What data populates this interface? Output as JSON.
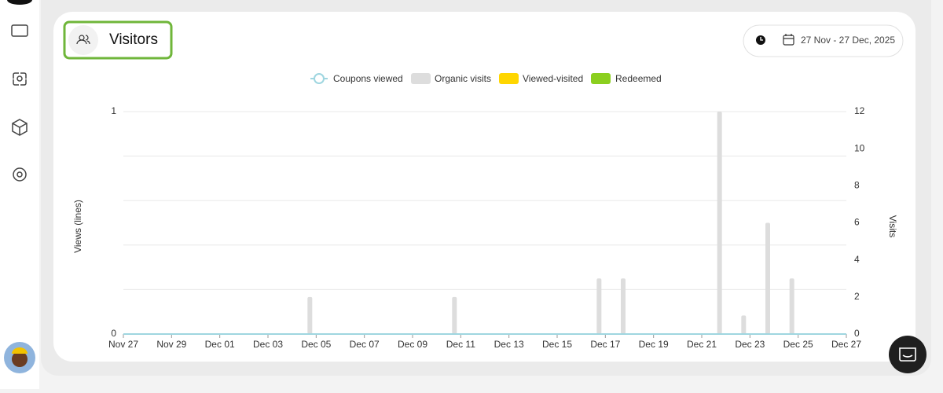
{
  "header": {
    "title": "Visitors",
    "date_range": "27 Nov - 27 Dec, 2025"
  },
  "chart_data": {
    "type": "bar",
    "y_label": "Views (lines)",
    "y2_label": "Visits",
    "categories": [
      "Nov 27",
      null,
      "Nov 29",
      null,
      "Dec 01",
      null,
      "Dec 03",
      null,
      "Dec 05",
      null,
      "Dec 07",
      null,
      "Dec 09",
      null,
      "Dec 11",
      null,
      "Dec 13",
      null,
      "Dec 15",
      null,
      "Dec 17",
      null,
      "Dec 19",
      null,
      "Dec 21",
      null,
      "Dec 23",
      null,
      "Dec 25",
      null,
      "Dec 27"
    ],
    "ylim": [
      0,
      1
    ],
    "yticks": [
      0,
      1
    ],
    "y2lim": [
      0,
      12
    ],
    "y2ticks": [
      0,
      2,
      4,
      6,
      8,
      10,
      12
    ],
    "grid": true,
    "series": [
      {
        "name": "Coupons viewed",
        "type": "line",
        "color": "#9fd6e0",
        "axis": "y",
        "values": [
          0,
          0,
          0,
          0,
          0,
          0,
          0,
          0,
          0,
          0,
          0,
          0,
          0,
          0,
          0,
          0,
          0,
          0,
          0,
          0,
          0,
          0,
          0,
          0,
          0,
          0,
          0,
          0,
          0,
          0,
          0
        ]
      },
      {
        "name": "Organic visits",
        "type": "bar",
        "color": "#dddddd",
        "axis": "y2",
        "values": [
          0,
          0,
          0,
          0,
          0,
          0,
          0,
          0,
          2,
          0,
          0,
          0,
          0,
          0,
          2,
          0,
          0,
          0,
          0,
          0,
          3,
          3,
          0,
          0,
          0,
          12,
          1,
          6,
          3,
          0,
          0
        ]
      },
      {
        "name": "Viewed-visited",
        "type": "bar",
        "color": "#ffd600",
        "axis": "y2",
        "values": [
          0,
          0,
          0,
          0,
          0,
          0,
          0,
          0,
          0,
          0,
          0,
          0,
          0,
          0,
          0,
          0,
          0,
          0,
          0,
          0,
          0,
          0,
          0,
          0,
          0,
          0,
          0,
          0,
          0,
          0,
          0
        ]
      },
      {
        "name": "Redeemed",
        "type": "bar",
        "color": "#8bcf1f",
        "axis": "y2",
        "values": [
          0,
          0,
          0,
          0,
          0,
          0,
          0,
          0,
          0,
          0,
          0,
          0,
          0,
          0,
          0,
          0,
          0,
          0,
          0,
          0,
          0,
          0,
          0,
          0,
          0,
          0,
          0,
          0,
          0,
          0,
          0
        ]
      }
    ]
  }
}
